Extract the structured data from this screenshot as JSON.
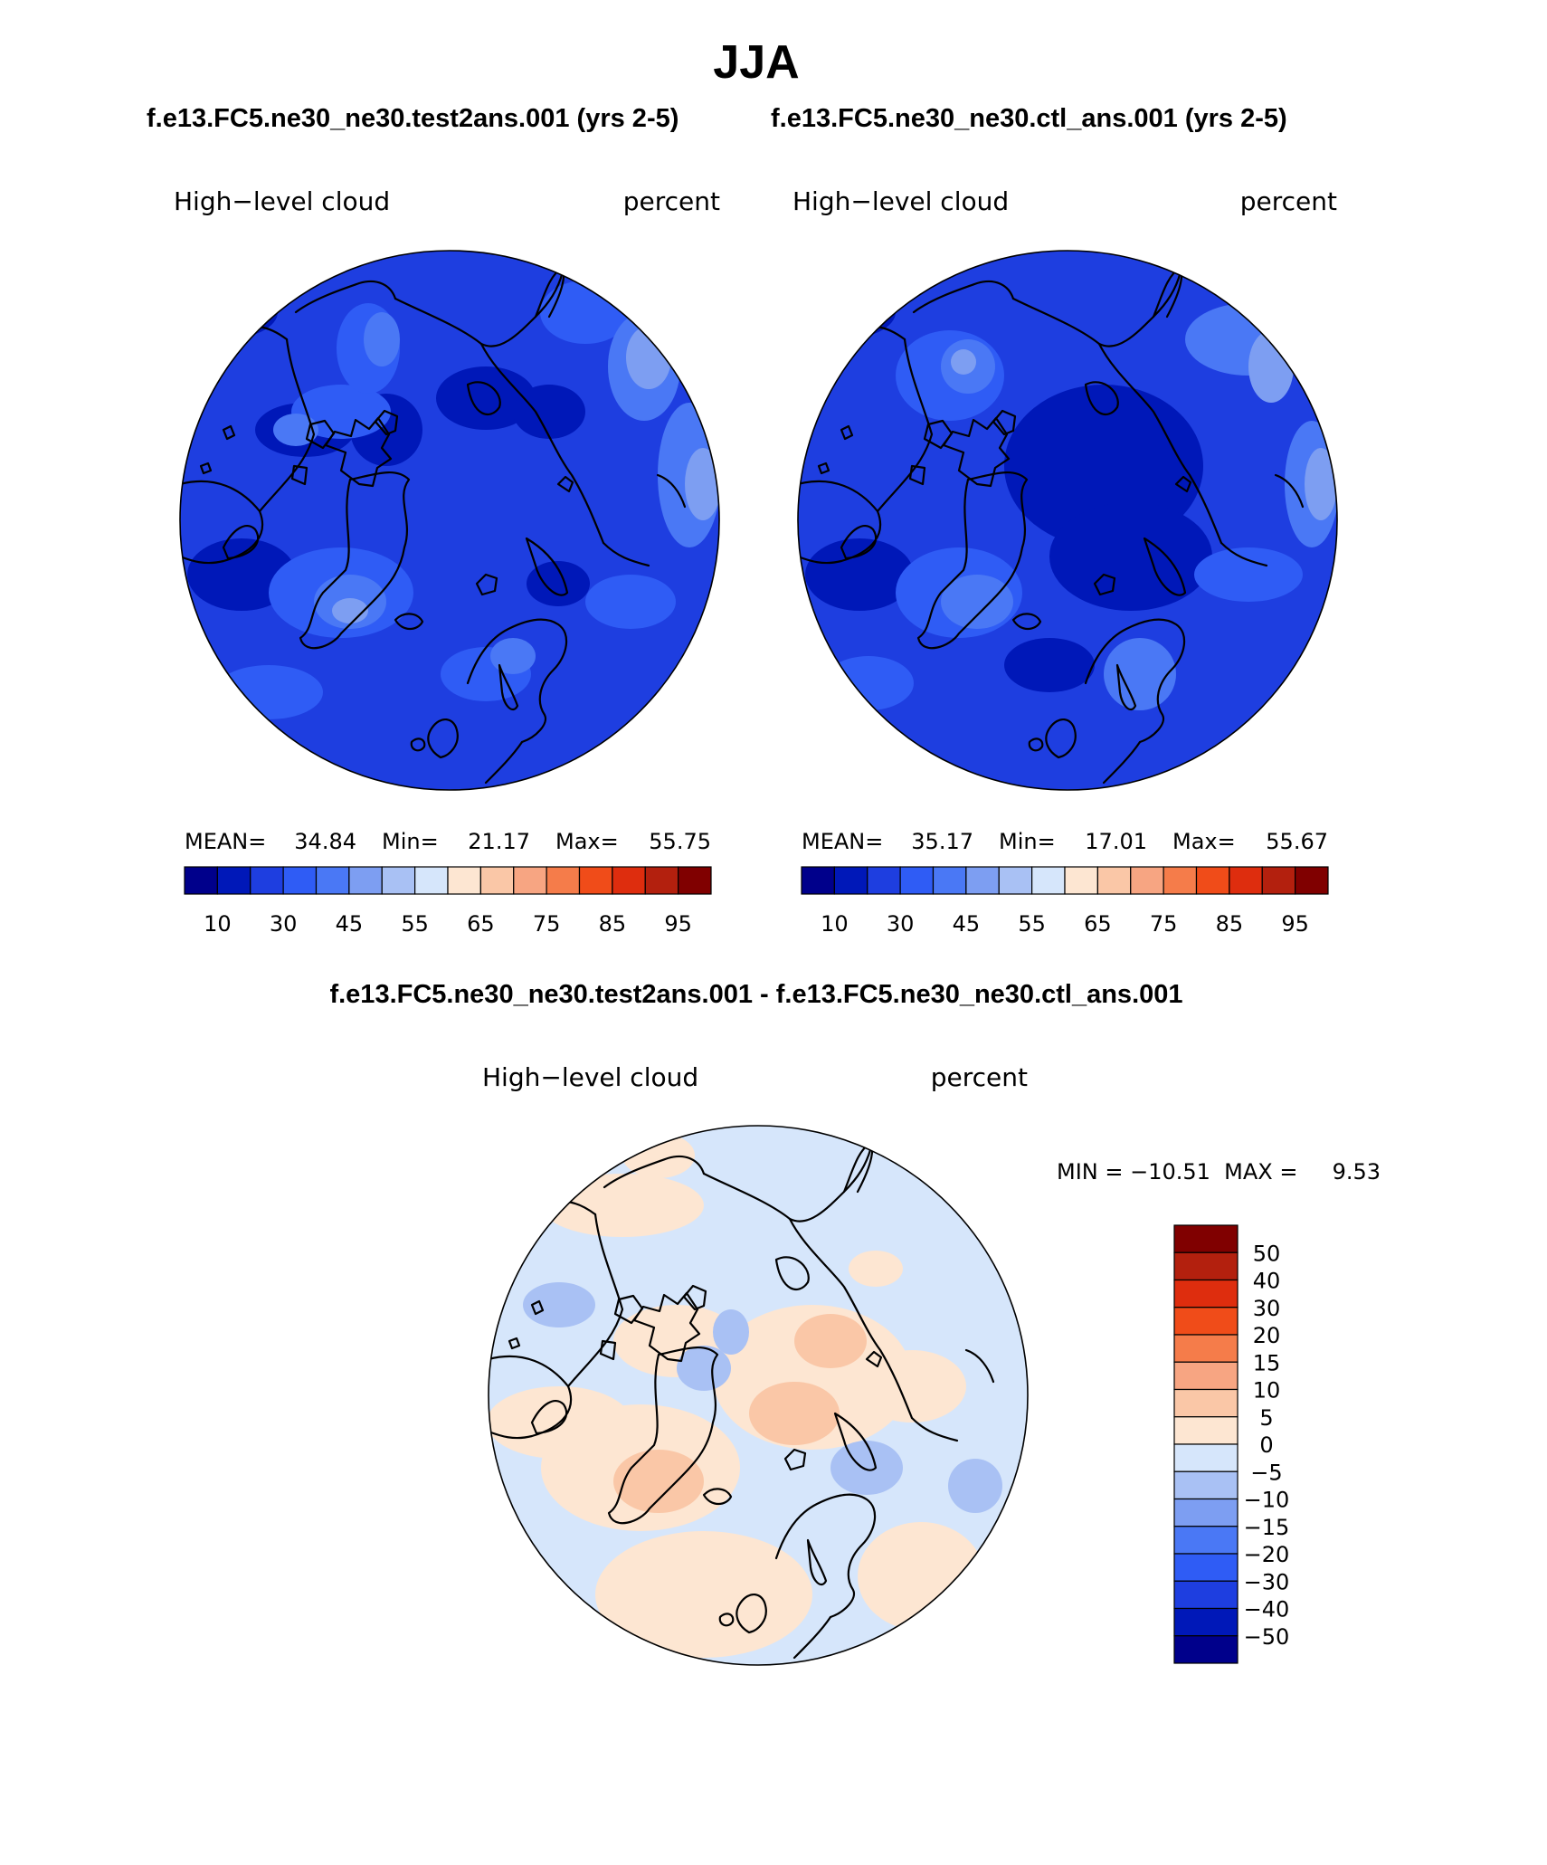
{
  "season": "JJA",
  "case_titles": {
    "left": "f.e13.FC5.ne30_ne30.test2ans.001 (yrs 2-5)",
    "right": "f.e13.FC5.ne30_ne30.ctl_ans.001 (yrs 2-5)",
    "diff": "f.e13.FC5.ne30_ne30.test2ans.001 - f.e13.FC5.ne30_ne30.ctl_ans.001"
  },
  "panels": [
    {
      "variable": "High−level cloud",
      "units": "percent",
      "stats": {
        "mean_label": "MEAN=",
        "mean": "34.84",
        "min_label": "Min=",
        "min": "21.17",
        "max_label": "Max=",
        "max": "55.75"
      }
    },
    {
      "variable": "High−level cloud",
      "units": "percent",
      "stats": {
        "mean_label": "MEAN=",
        "mean": "35.17",
        "min_label": "Min=",
        "min": "17.01",
        "max_label": "Max=",
        "max": "55.67"
      }
    }
  ],
  "diff_panel": {
    "variable": "High−level cloud",
    "units": "percent",
    "minmax_text": "MIN = −10.51  MAX =     9.53"
  },
  "abs_colorbar": {
    "colors": [
      "#00008b",
      "#0018b8",
      "#1e3ee0",
      "#2f5cf5",
      "#4a78f5",
      "#7d9ef2",
      "#a9c1f4",
      "#d6e6fb",
      "#fde6d2",
      "#fac7a7",
      "#f7a582",
      "#f57c4a",
      "#f04c19",
      "#de2d0e",
      "#b3200e",
      "#800000"
    ],
    "tick_labels": [
      "10",
      "30",
      "45",
      "55",
      "65",
      "75",
      "85",
      "95"
    ]
  },
  "diff_colorbar": {
    "colors_top_to_bottom": [
      "#800000",
      "#b3200e",
      "#de2d0e",
      "#f04c19",
      "#f57c4a",
      "#f7a582",
      "#fac7a7",
      "#fde6d2",
      "#d6e6fb",
      "#a9c1f4",
      "#7d9ef2",
      "#4a78f5",
      "#2f5cf5",
      "#1e3ee0",
      "#0018b8",
      "#00008b"
    ],
    "tick_labels": [
      "50",
      "40",
      "30",
      "20",
      "15",
      "10",
      "5",
      "0",
      "−5",
      "−10",
      "−15",
      "−20",
      "−30",
      "−40",
      "−50"
    ]
  }
}
